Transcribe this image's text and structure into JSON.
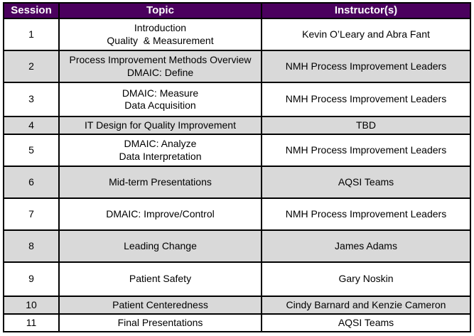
{
  "table": {
    "headers": [
      "Session",
      "Topic",
      "Instructor(s)"
    ],
    "rows": [
      {
        "session": "1",
        "topic": "Introduction\nQuality  & Measurement",
        "instructor": "Kevin O’Leary and Abra Fant",
        "shaded": false
      },
      {
        "session": "2",
        "topic": "Process Improvement Methods Overview\nDMAIC: Define",
        "instructor": "NMH Process Improvement Leaders",
        "shaded": true
      },
      {
        "session": "3",
        "topic": "DMAIC: Measure\nData Acquisition",
        "instructor": "NMH Process Improvement Leaders",
        "shaded": false
      },
      {
        "session": "4",
        "topic": "IT Design for Quality Improvement",
        "instructor": "TBD",
        "shaded": true
      },
      {
        "session": "5",
        "topic": "DMAIC: Analyze\nData Interpretation",
        "instructor": "NMH Process Improvement Leaders",
        "shaded": false
      },
      {
        "session": "6",
        "topic": "Mid-term Presentations",
        "instructor": "AQSI Teams",
        "shaded": true
      },
      {
        "session": "7",
        "topic": "DMAIC: Improve/Control",
        "instructor": "NMH Process Improvement Leaders",
        "shaded": false
      },
      {
        "session": "8",
        "topic": "Leading Change",
        "instructor": "James Adams",
        "shaded": true
      },
      {
        "session": "9",
        "topic": "Patient Safety",
        "instructor": "Gary Noskin",
        "shaded": false
      },
      {
        "session": "10",
        "topic": "Patient Centeredness",
        "instructor": "Cindy Barnard and Kenzie Cameron",
        "shaded": true
      },
      {
        "session": "11",
        "topic": "Final Presentations",
        "instructor": "AQSI Teams",
        "shaded": false
      }
    ]
  },
  "colors": {
    "header_bg": "#4B005E",
    "header_text": "#FFFFFF",
    "row_bg": "#FFFFFF",
    "row_shaded_bg": "#D9D9D9",
    "border": "#000000",
    "text": "#000000"
  }
}
